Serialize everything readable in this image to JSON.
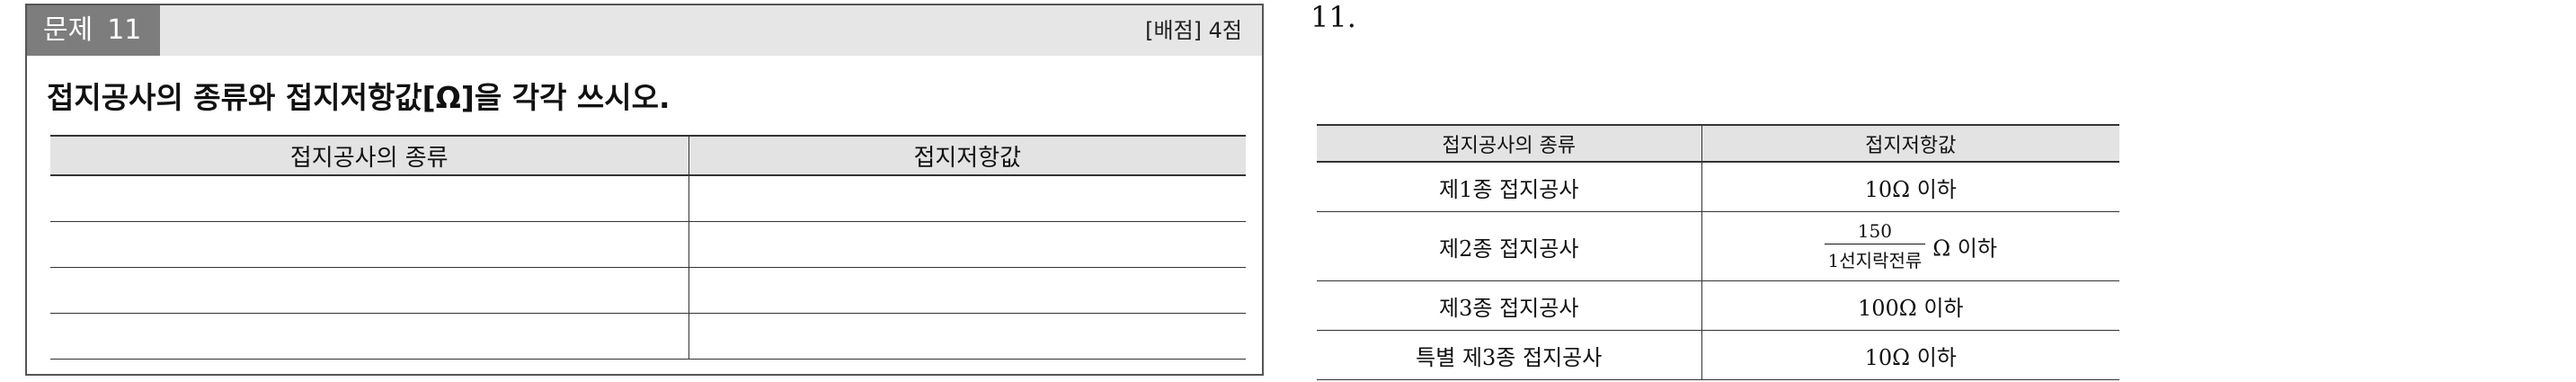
{
  "problem": {
    "label": "문제",
    "number": "11",
    "score": "[배점] 4점",
    "question": "접지공사의 종류와 접지저항값[Ω]을 각각 쓰시오.",
    "table_headers": [
      "접지공사의 종류",
      "접지저항값"
    ],
    "blank_row_count": 4
  },
  "solution": {
    "number": "11.",
    "table_headers": [
      "접지공사의 종류",
      "접지저항값"
    ],
    "rows": [
      {
        "type": "제1종 접지공사",
        "value": "10Ω 이하"
      },
      {
        "type": "제2종 접지공사",
        "value_numerator": "150",
        "value_denominator": "1선지락전류",
        "value_unit": "Ω 이하"
      },
      {
        "type": "제3종 접지공사",
        "value": "100Ω 이하"
      },
      {
        "type": "특별 제3종 접지공사",
        "value": "10Ω 이하"
      }
    ]
  }
}
